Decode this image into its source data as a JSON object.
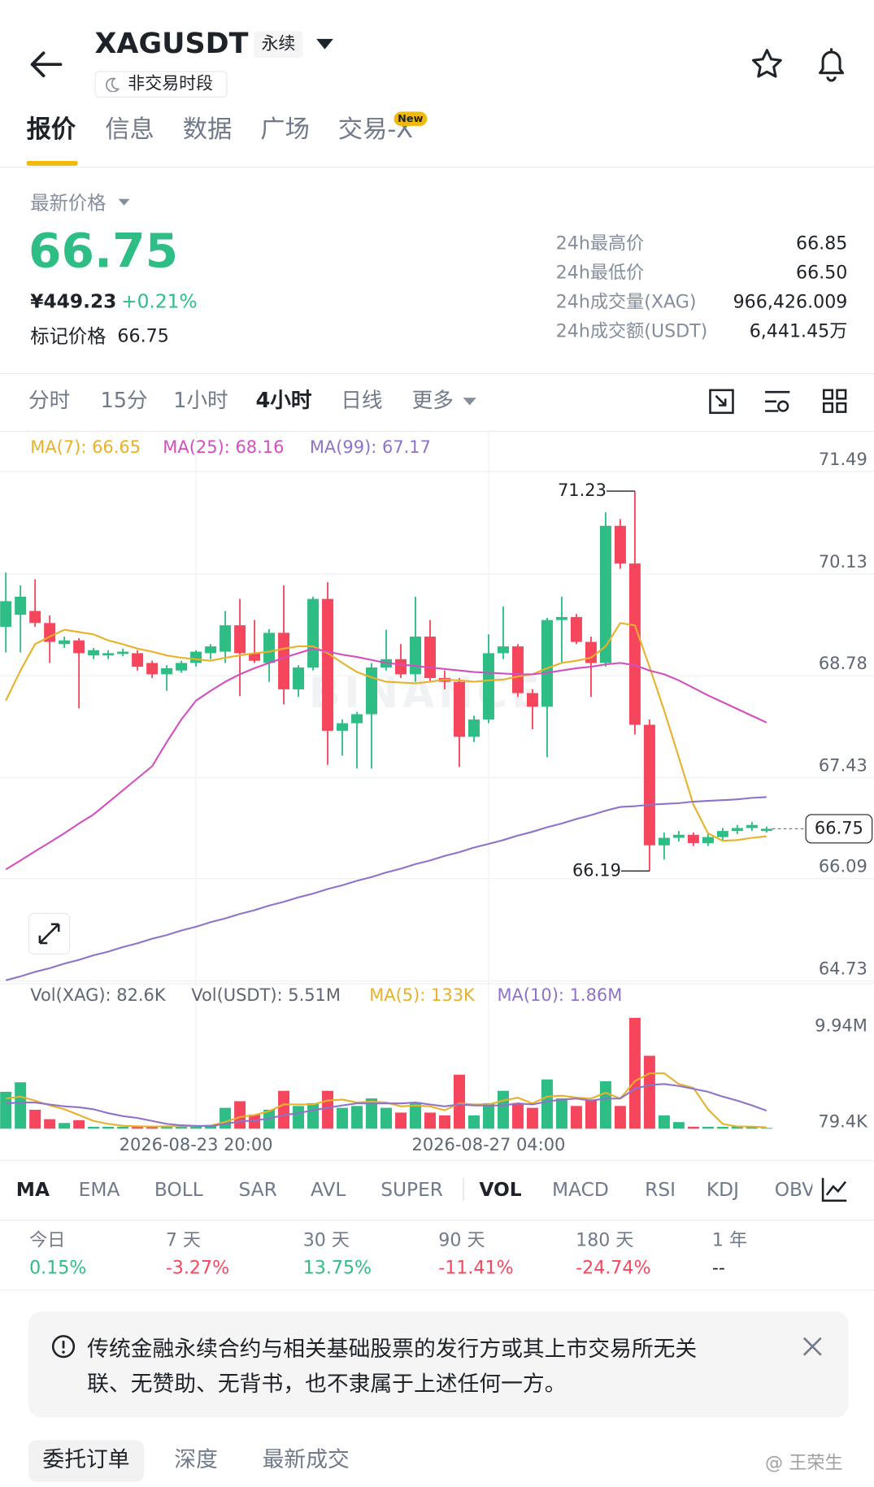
{
  "header": {
    "symbol": "XAGUSDT",
    "contract": "永续",
    "status": "非交易时段"
  },
  "tabs": [
    "报价",
    "信息",
    "数据",
    "广场",
    "交易-X"
  ],
  "new_badge": "New",
  "price": {
    "label": "最新价格",
    "last": "66.75",
    "cny": "¥449.23",
    "change": "+0.21%",
    "mark_label": "标记价格",
    "mark": "66.75"
  },
  "stats": [
    [
      "24h最高价",
      "66.85"
    ],
    [
      "24h最低价",
      "66.50"
    ],
    [
      "24h成交量(XAG)",
      "966,426.009"
    ],
    [
      "24h成交额(USDT)",
      "6,441.45万"
    ]
  ],
  "timeframes": [
    "分时",
    "15分",
    "1小时",
    "4小时",
    "日线",
    "更多"
  ],
  "indicators": [
    "MA",
    "EMA",
    "BOLL",
    "SAR",
    "AVL",
    "SUPER",
    "VOL",
    "MACD",
    "RSI",
    "KDJ",
    "OBV"
  ],
  "returns": [
    [
      "今日",
      "0.15%"
    ],
    [
      "7 天",
      "-3.27%"
    ],
    [
      "30 天",
      "13.75%"
    ],
    [
      "90 天",
      "-11.41%"
    ],
    [
      "180 天",
      "-24.74%"
    ],
    [
      "1 年",
      "--"
    ]
  ],
  "notice": "传统金融永续合约与相关基础股票的发行方或其上市交易所无关联、无赞助、无背书，也不隶属于上述任何一方。",
  "order_tabs": [
    "委托订单",
    "深度",
    "最新成交"
  ],
  "watermark": "@ 王荣生",
  "chart_data": [
    {
      "type": "candlestick",
      "watermark": "BINANCE",
      "up_color": "#2ebd85",
      "down_color": "#f6465d",
      "open": [
        69.43,
        69.59,
        69.64,
        69.48,
        69.2,
        69.25,
        69.05,
        69.05,
        69.07,
        69.08,
        68.95,
        68.8,
        68.85,
        68.95,
        69.08,
        69.1,
        69.45,
        69.08,
        68.95,
        69.35,
        68.6,
        68.89,
        69.8,
        68.05,
        68.15,
        68.27,
        68.89,
        69.0,
        68.8,
        69.3,
        68.75,
        68.7,
        67.97,
        68.2,
        69.08,
        69.17,
        68.55,
        68.37,
        69.52,
        69.56,
        69.23,
        68.95,
        70.77,
        70.27,
        68.13,
        66.53,
        66.63,
        66.67,
        66.56,
        66.64,
        66.72,
        66.76,
        66.72
      ],
      "high": [
        70.15,
        69.98,
        70.06,
        69.58,
        69.3,
        69.28,
        69.15,
        69.12,
        69.14,
        69.12,
        68.98,
        68.92,
        68.98,
        69.12,
        69.2,
        69.64,
        69.8,
        69.52,
        69.4,
        69.98,
        68.92,
        69.83,
        70.02,
        68.2,
        68.3,
        68.95,
        69.39,
        69.2,
        69.83,
        69.52,
        68.85,
        68.75,
        68.25,
        69.33,
        69.7,
        69.2,
        68.6,
        69.55,
        69.83,
        69.6,
        69.3,
        70.95,
        70.86,
        71.23,
        68.2,
        66.7,
        66.72,
        66.7,
        66.68,
        66.76,
        66.8,
        66.84,
        66.78
      ],
      "low": [
        69.09,
        69.09,
        69.43,
        68.95,
        69.15,
        68.35,
        69.0,
        69.0,
        69.04,
        68.85,
        68.75,
        68.58,
        68.82,
        68.9,
        69.0,
        68.95,
        68.51,
        68.95,
        68.7,
        68.4,
        68.5,
        68.85,
        67.6,
        67.72,
        67.55,
        67.55,
        68.85,
        68.75,
        68.7,
        68.7,
        68.6,
        67.57,
        67.9,
        68.15,
        69.0,
        68.5,
        68.07,
        67.7,
        68.95,
        69.2,
        68.5,
        68.9,
        70.2,
        68.0,
        66.19,
        66.34,
        66.58,
        66.52,
        66.52,
        66.6,
        66.68,
        66.72,
        66.7
      ],
      "close": [
        69.77,
        69.83,
        69.48,
        69.23,
        69.25,
        69.08,
        69.12,
        69.08,
        69.1,
        68.9,
        68.8,
        68.88,
        68.95,
        69.1,
        69.17,
        69.45,
        69.08,
        68.98,
        69.35,
        68.6,
        68.89,
        69.8,
        68.05,
        68.15,
        68.27,
        68.89,
        69.0,
        68.8,
        69.3,
        68.75,
        68.7,
        67.97,
        68.2,
        69.08,
        69.17,
        68.55,
        68.37,
        69.52,
        69.56,
        69.23,
        68.95,
        70.77,
        70.27,
        68.13,
        66.53,
        66.63,
        66.67,
        66.56,
        66.64,
        66.72,
        66.76,
        66.8,
        66.75
      ],
      "series": [
        {
          "name": "MA(7): 66.65",
          "color": "#e8b12a",
          "values": [
            68.45,
            68.85,
            69.2,
            69.3,
            69.39,
            69.36,
            69.33,
            69.25,
            69.2,
            69.14,
            69.1,
            69.05,
            69.02,
            69.0,
            68.98,
            69.02,
            69.05,
            69.08,
            69.1,
            69.14,
            69.17,
            69.17,
            69.08,
            68.95,
            68.83,
            68.76,
            68.7,
            68.69,
            68.68,
            68.7,
            68.73,
            68.72,
            68.7,
            68.72,
            68.73,
            68.77,
            68.8,
            68.88,
            68.95,
            68.98,
            69.02,
            69.17,
            69.48,
            69.45,
            68.9,
            68.32,
            67.7,
            67.07,
            66.69,
            66.59,
            66.6,
            66.63,
            66.65
          ]
        },
        {
          "name": "MA(25): 68.16",
          "color": "#d34fc0",
          "values": [
            66.21,
            66.33,
            66.45,
            66.57,
            66.69,
            66.82,
            66.94,
            67.1,
            67.26,
            67.42,
            67.58,
            67.9,
            68.2,
            68.45,
            68.58,
            68.7,
            68.8,
            68.88,
            68.95,
            69.02,
            69.08,
            69.14,
            69.1,
            69.06,
            69.03,
            68.99,
            68.95,
            68.93,
            68.91,
            68.89,
            68.87,
            68.85,
            68.83,
            68.82,
            68.81,
            68.8,
            68.8,
            68.82,
            68.85,
            68.88,
            68.9,
            68.93,
            68.95,
            68.92,
            68.85,
            68.8,
            68.72,
            68.62,
            68.52,
            68.43,
            68.34,
            68.25,
            68.16
          ]
        },
        {
          "name": "MA(99): 67.17",
          "color": "#8f72c9",
          "values": [
            64.74,
            64.79,
            64.85,
            64.9,
            64.96,
            65.01,
            65.07,
            65.12,
            65.18,
            65.23,
            65.29,
            65.34,
            65.4,
            65.45,
            65.51,
            65.56,
            65.62,
            65.67,
            65.73,
            65.78,
            65.84,
            65.89,
            65.95,
            66.0,
            66.06,
            66.11,
            66.17,
            66.22,
            66.28,
            66.33,
            66.39,
            66.44,
            66.5,
            66.55,
            66.6,
            66.66,
            66.71,
            66.77,
            66.82,
            66.88,
            66.93,
            66.99,
            67.04,
            67.05,
            67.07,
            67.08,
            67.09,
            67.11,
            67.12,
            67.13,
            67.14,
            67.16,
            67.17
          ]
        }
      ],
      "ylim": [
        64.73,
        71.49
      ],
      "yticks": [
        71.49,
        70.13,
        68.78,
        67.43,
        66.09,
        64.73
      ],
      "grid": true
    },
    {
      "type": "bar",
      "legend_texts": [
        "Vol(XAG): 82.6K",
        "Vol(USDT): 5.51M"
      ],
      "categories": [
        null,
        null,
        null,
        null,
        null,
        null,
        null,
        null,
        null,
        null,
        null,
        null,
        null,
        "2026-08-23 20:00",
        null,
        null,
        null,
        null,
        null,
        null,
        null,
        null,
        null,
        null,
        null,
        null,
        null,
        null,
        null,
        null,
        null,
        null,
        null,
        "2026-08-27 04:00",
        null,
        null,
        null,
        null,
        null,
        null,
        null,
        null,
        null,
        null,
        null,
        null,
        null,
        null,
        null,
        null,
        null,
        null,
        null
      ],
      "values": [
        3800000,
        4780000,
        1950000,
        980000,
        590000,
        880000,
        200000,
        200000,
        200000,
        200000,
        200000,
        300000,
        300000,
        300000,
        400000,
        2150000,
        2830000,
        1460000,
        1950000,
        3900000,
        2340000,
        2630000,
        3900000,
        2150000,
        2340000,
        3120000,
        2150000,
        1660000,
        2730000,
        1660000,
        1370000,
        5560000,
        1370000,
        2630000,
        3900000,
        2630000,
        2150000,
        5070000,
        3120000,
        2340000,
        2930000,
        4880000,
        2340000,
        11410000,
        7510000,
        1370000,
        680000,
        200000,
        200000,
        200000,
        300000,
        200000,
        82600
      ],
      "series": [
        {
          "name": "MA(5): 133K",
          "color": "#e8b12a",
          "values": [
            3100000,
            3300000,
            2900000,
            2400000,
            2000000,
            1400000,
            800000,
            500000,
            300000,
            250000,
            220000,
            240000,
            260000,
            280000,
            300000,
            700000,
            1200000,
            1400000,
            1800000,
            2500000,
            2500000,
            2500000,
            2900000,
            3000000,
            2700000,
            2800000,
            2700000,
            2300000,
            2400000,
            2300000,
            1900000,
            2600000,
            2500000,
            2500000,
            2900000,
            3200000,
            2600000,
            3300000,
            3400000,
            3200000,
            3100000,
            3700000,
            3100000,
            4900000,
            5700000,
            5700000,
            4600000,
            4200000,
            2000000,
            500000,
            220000,
            220000,
            133000
          ]
        },
        {
          "name": "MA(10): 1.86M",
          "color": "#8f72c9",
          "values": [
            2600000,
            2700000,
            2700000,
            2500000,
            2300000,
            2200000,
            2000000,
            1600000,
            1300000,
            1100000,
            800000,
            500000,
            350000,
            290000,
            280000,
            500000,
            750000,
            850000,
            1050000,
            1400000,
            1600000,
            1900000,
            2150000,
            2400000,
            2600000,
            2600000,
            2600000,
            2600000,
            2700000,
            2500000,
            2300000,
            2500000,
            2400000,
            2400000,
            2400000,
            2600000,
            2500000,
            2800000,
            3000000,
            3100000,
            2900000,
            3100000,
            3100000,
            4100000,
            4500000,
            4600000,
            4400000,
            4100000,
            3800000,
            3300000,
            2900000,
            2400000,
            1860000
          ]
        }
      ],
      "ylim": [
        0,
        12380000
      ],
      "yticks": [
        {
          "value": 9940000,
          "label": "9.94M"
        },
        {
          "value": 79400,
          "label": "79.4K"
        }
      ],
      "grid": false
    }
  ]
}
